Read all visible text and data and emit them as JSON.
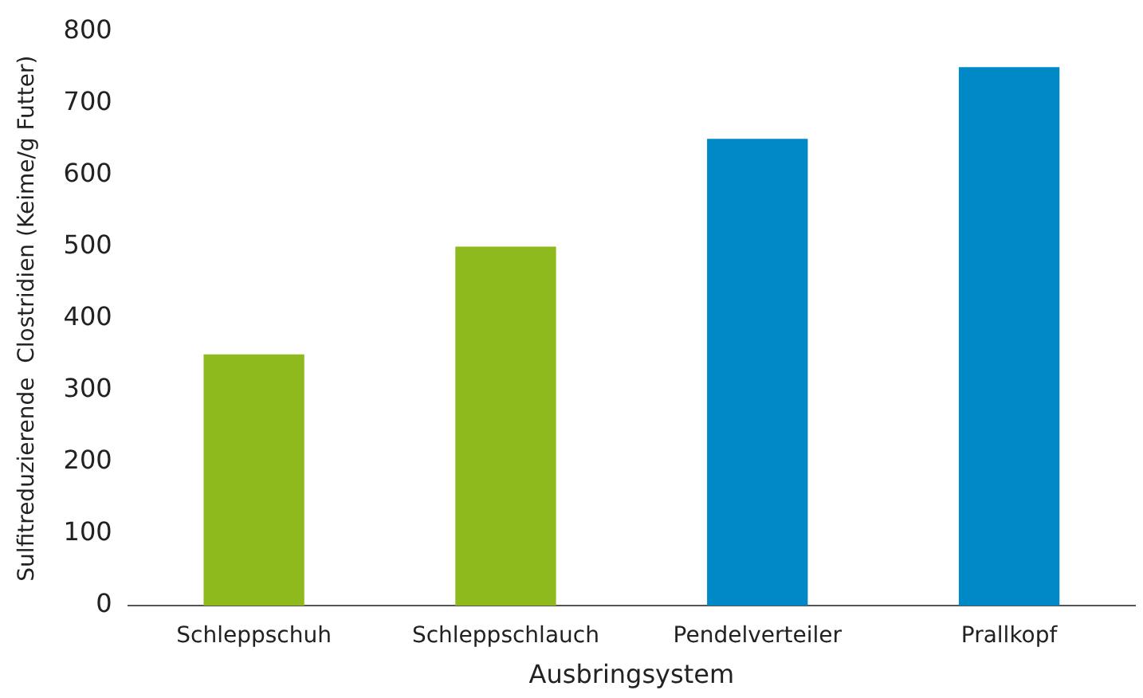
{
  "chart_data": {
    "type": "bar",
    "xlabel": "Ausbringsystem",
    "ylabel": "Sulfitreduzierende  Clostridien (Keime/g Futter)",
    "categories": [
      "Schleppschuh",
      "Schleppschlauch",
      "Pendelverteiler",
      "Prallkopf"
    ],
    "values": [
      350,
      500,
      650,
      750
    ],
    "colors": [
      "#8fba1d",
      "#8fba1d",
      "#0089c6",
      "#0089c6"
    ],
    "ylim": [
      0,
      800
    ],
    "yticks": [
      0,
      100,
      200,
      300,
      400,
      500,
      600,
      700,
      800
    ],
    "grid": false,
    "legend": false
  }
}
